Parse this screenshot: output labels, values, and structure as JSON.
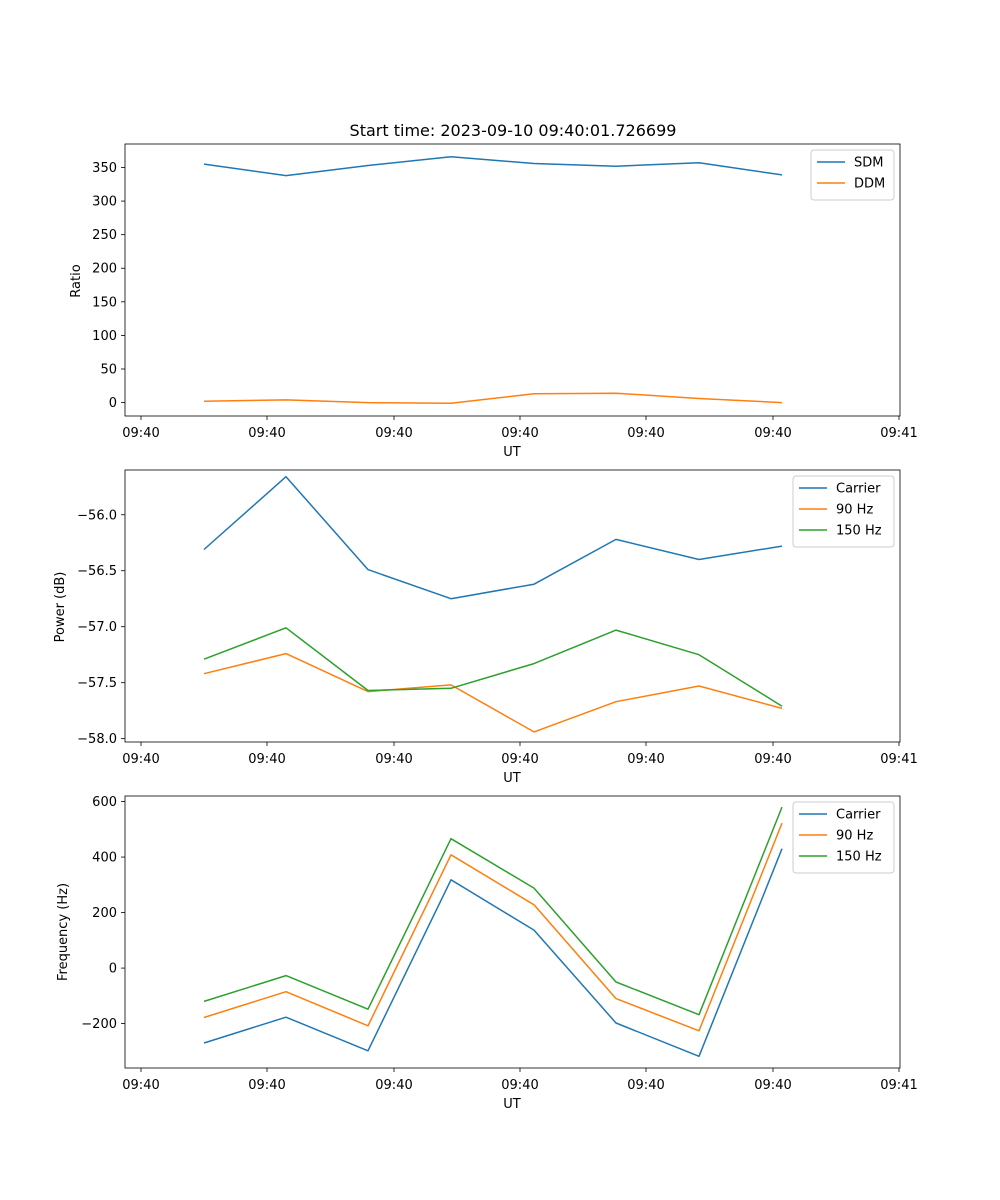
{
  "chart_data": [
    {
      "type": "line",
      "title": "Start time: 2023-09-10 09:40:01.726699",
      "xlabel": "UT",
      "ylabel": "Ratio",
      "x_tick_labels": [
        "09:40",
        "09:40",
        "09:40",
        "09:40",
        "09:40",
        "09:40",
        "09:40",
        "09:41"
      ],
      "ylim": [
        -20,
        385
      ],
      "y_ticks": [
        0,
        50,
        100,
        150,
        200,
        250,
        300,
        350
      ],
      "y_tick_labels": [
        "0",
        "50",
        "100",
        "150",
        "200",
        "250",
        "300",
        "350"
      ],
      "legend_position": "top-right",
      "series": [
        {
          "name": "SDM",
          "color": "#1f77b4",
          "values": [
            355,
            338,
            353,
            366,
            356,
            352,
            357,
            339
          ]
        },
        {
          "name": "DDM",
          "color": "#ff7f0e",
          "values": [
            2,
            4,
            0,
            -1,
            13,
            14,
            6,
            0
          ]
        }
      ]
    },
    {
      "type": "line",
      "title": "",
      "xlabel": "UT",
      "ylabel": "Power (dB)",
      "x_tick_labels": [
        "09:40",
        "09:40",
        "09:40",
        "09:40",
        "09:40",
        "09:40",
        "09:40",
        "09:41"
      ],
      "ylim": [
        -58.03,
        -55.6
      ],
      "y_ticks": [
        -58.0,
        -57.5,
        -57.0,
        -56.5,
        -56.0
      ],
      "y_tick_labels": [
        "−58.0",
        "−57.5",
        "−57.0",
        "−56.5",
        "−56.0"
      ],
      "legend_position": "top-right",
      "series": [
        {
          "name": "Carrier",
          "color": "#1f77b4",
          "values": [
            -56.31,
            -55.66,
            -56.49,
            -56.75,
            -56.62,
            -56.22,
            -56.4,
            -56.28
          ]
        },
        {
          "name": "90 Hz",
          "color": "#ff7f0e",
          "values": [
            -57.42,
            -57.24,
            -57.58,
            -57.52,
            -57.94,
            -57.67,
            -57.53,
            -57.73
          ]
        },
        {
          "name": "150 Hz",
          "color": "#2ca02c",
          "values": [
            -57.29,
            -57.01,
            -57.57,
            -57.55,
            -57.33,
            -57.03,
            -57.25,
            -57.71
          ]
        }
      ]
    },
    {
      "type": "line",
      "title": "",
      "xlabel": "UT",
      "ylabel": "Frequency (Hz)",
      "x_tick_labels": [
        "09:40",
        "09:40",
        "09:40",
        "09:40",
        "09:40",
        "09:40",
        "09:40",
        "09:41"
      ],
      "ylim": [
        -360,
        620
      ],
      "y_ticks": [
        -200,
        0,
        200,
        400,
        600
      ],
      "y_tick_labels": [
        "−200",
        "0",
        "200",
        "400",
        "600"
      ],
      "legend_position": "top-right",
      "series": [
        {
          "name": "Carrier",
          "color": "#1f77b4",
          "values": [
            -270,
            -177,
            -298,
            318,
            137,
            -198,
            -318,
            430
          ]
        },
        {
          "name": "90 Hz",
          "color": "#ff7f0e",
          "values": [
            -178,
            -85,
            -208,
            408,
            228,
            -110,
            -226,
            522
          ]
        },
        {
          "name": "150 Hz",
          "color": "#2ca02c",
          "values": [
            -120,
            -27,
            -148,
            466,
            288,
            -50,
            -168,
            580
          ]
        }
      ]
    }
  ]
}
